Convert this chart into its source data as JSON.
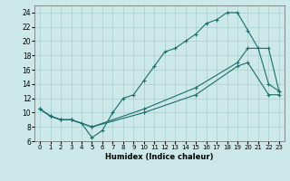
{
  "xlabel": "Humidex (Indice chaleur)",
  "xlim": [
    -0.5,
    23.5
  ],
  "ylim": [
    6,
    25
  ],
  "xticks": [
    0,
    1,
    2,
    3,
    4,
    5,
    6,
    7,
    8,
    9,
    10,
    11,
    12,
    13,
    14,
    15,
    16,
    17,
    18,
    19,
    20,
    21,
    22,
    23
  ],
  "yticks": [
    6,
    8,
    10,
    12,
    14,
    16,
    18,
    20,
    22,
    24
  ],
  "bg_color": "#cce8e8",
  "grid_color": "#aacece",
  "line_color": "#1a6e6a",
  "lines": [
    {
      "x": [
        0,
        1,
        2,
        3,
        4,
        5,
        6,
        7,
        8,
        9,
        10,
        11,
        12,
        13,
        14,
        15,
        16,
        17,
        18,
        19,
        20,
        21,
        22,
        23
      ],
      "y": [
        10.5,
        9.5,
        9.0,
        9.0,
        8.5,
        6.5,
        7.5,
        10.0,
        12.0,
        12.5,
        14.5,
        16.5,
        18.5,
        19.0,
        20.0,
        21.0,
        22.5,
        23.0,
        24.0,
        24.0,
        21.5,
        19.0,
        14.0,
        13.0
      ]
    },
    {
      "x": [
        0,
        1,
        2,
        3,
        5,
        10,
        15,
        19,
        20,
        22,
        23
      ],
      "y": [
        10.5,
        9.5,
        9.0,
        9.0,
        8.0,
        10.5,
        13.5,
        17.0,
        19.0,
        19.0,
        13.0
      ]
    },
    {
      "x": [
        0,
        1,
        2,
        3,
        5,
        10,
        15,
        19,
        20,
        22,
        23
      ],
      "y": [
        10.5,
        9.5,
        9.0,
        9.0,
        8.0,
        10.0,
        12.5,
        16.5,
        17.0,
        12.5,
        12.5
      ]
    }
  ]
}
